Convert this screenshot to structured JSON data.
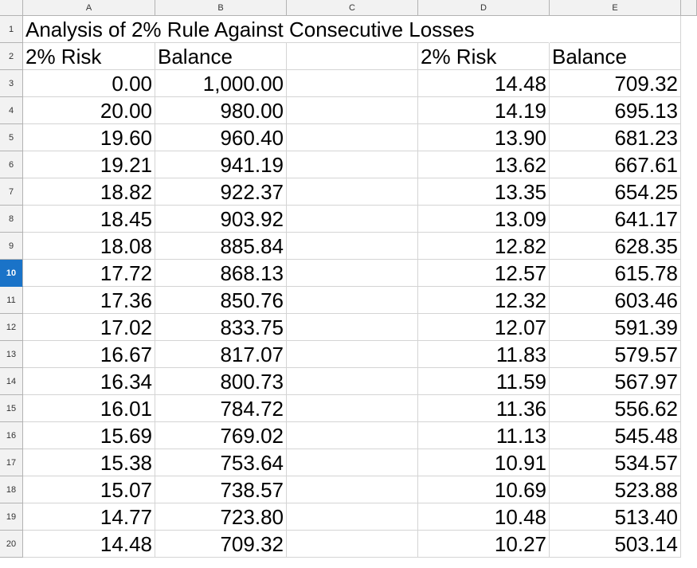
{
  "columns": [
    "A",
    "B",
    "C",
    "D",
    "E"
  ],
  "rows": [
    "1",
    "2",
    "3",
    "4",
    "5",
    "6",
    "7",
    "8",
    "9",
    "10",
    "11",
    "12",
    "13",
    "14",
    "15",
    "16",
    "17",
    "18",
    "19",
    "20"
  ],
  "active_row": "10",
  "title": "Analysis of 2% Rule Against Consecutive Losses",
  "headers": {
    "a": "2% Risk",
    "b": "Balance",
    "d": "2% Risk",
    "e": "Balance"
  },
  "left_table": [
    {
      "risk": "0.00",
      "balance": "1,000.00"
    },
    {
      "risk": "20.00",
      "balance": "980.00"
    },
    {
      "risk": "19.60",
      "balance": "960.40"
    },
    {
      "risk": "19.21",
      "balance": "941.19"
    },
    {
      "risk": "18.82",
      "balance": "922.37"
    },
    {
      "risk": "18.45",
      "balance": "903.92"
    },
    {
      "risk": "18.08",
      "balance": "885.84"
    },
    {
      "risk": "17.72",
      "balance": "868.13"
    },
    {
      "risk": "17.36",
      "balance": "850.76"
    },
    {
      "risk": "17.02",
      "balance": "833.75"
    },
    {
      "risk": "16.67",
      "balance": "817.07"
    },
    {
      "risk": "16.34",
      "balance": "800.73"
    },
    {
      "risk": "16.01",
      "balance": "784.72"
    },
    {
      "risk": "15.69",
      "balance": "769.02"
    },
    {
      "risk": "15.38",
      "balance": "753.64"
    },
    {
      "risk": "15.07",
      "balance": "738.57"
    },
    {
      "risk": "14.77",
      "balance": "723.80"
    },
    {
      "risk": "14.48",
      "balance": "709.32"
    }
  ],
  "right_table": [
    {
      "risk": "14.48",
      "balance": "709.32"
    },
    {
      "risk": "14.19",
      "balance": "695.13"
    },
    {
      "risk": "13.90",
      "balance": "681.23"
    },
    {
      "risk": "13.62",
      "balance": "667.61"
    },
    {
      "risk": "13.35",
      "balance": "654.25"
    },
    {
      "risk": "13.09",
      "balance": "641.17"
    },
    {
      "risk": "12.82",
      "balance": "628.35"
    },
    {
      "risk": "12.57",
      "balance": "615.78"
    },
    {
      "risk": "12.32",
      "balance": "603.46"
    },
    {
      "risk": "12.07",
      "balance": "591.39"
    },
    {
      "risk": "11.83",
      "balance": "579.57"
    },
    {
      "risk": "11.59",
      "balance": "567.97"
    },
    {
      "risk": "11.36",
      "balance": "556.62"
    },
    {
      "risk": "11.13",
      "balance": "545.48"
    },
    {
      "risk": "10.91",
      "balance": "534.57"
    },
    {
      "risk": "10.69",
      "balance": "523.88"
    },
    {
      "risk": "10.48",
      "balance": "513.40"
    },
    {
      "risk": "10.27",
      "balance": "503.14"
    }
  ]
}
